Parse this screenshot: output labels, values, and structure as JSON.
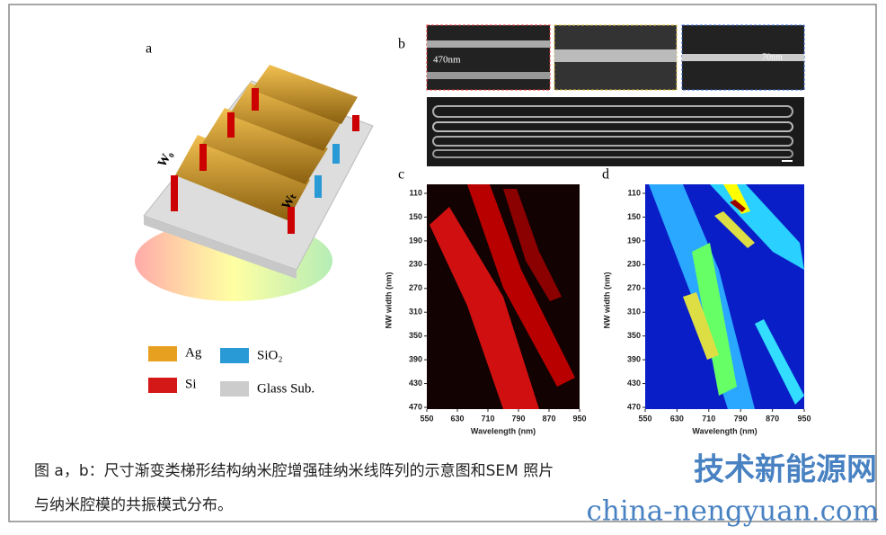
{
  "panels": {
    "a": "a",
    "b": "b",
    "c": "c",
    "d": "d"
  },
  "illustration": {
    "w0": "W₀",
    "wt": "Wₜ"
  },
  "legend": [
    {
      "label": "Ag"
    },
    {
      "label": "SiO₂"
    },
    {
      "label": "Si"
    },
    {
      "label": "Glass Sub."
    }
  ],
  "sem": {
    "scale_left": "470nm",
    "scale_right": "70nm"
  },
  "plots": [
    {
      "y_label": "NW width (nm)",
      "x_label": "Wavelength (nm)",
      "yticks": [
        110,
        150,
        190,
        230,
        270,
        310,
        350,
        390,
        430,
        470
      ],
      "xticks": [
        550,
        630,
        710,
        790,
        870,
        950
      ]
    },
    {
      "y_label": "NW width (nm)",
      "x_label": "Wavelength (nm)",
      "yticks": [
        110,
        150,
        190,
        230,
        270,
        310,
        350,
        390,
        430,
        470
      ],
      "xticks": [
        550,
        630,
        710,
        790,
        870,
        950
      ]
    }
  ],
  "caption": [
    "图 a，b：尺寸渐变类梯形结构纳米腔增强硅纳米线阵列的示意图和SEM 照片",
    "与纳米腔模的共振模式分布。"
  ],
  "watermark": {
    "title": "技术新能源网",
    "url": "china-nengyuan.com"
  }
}
